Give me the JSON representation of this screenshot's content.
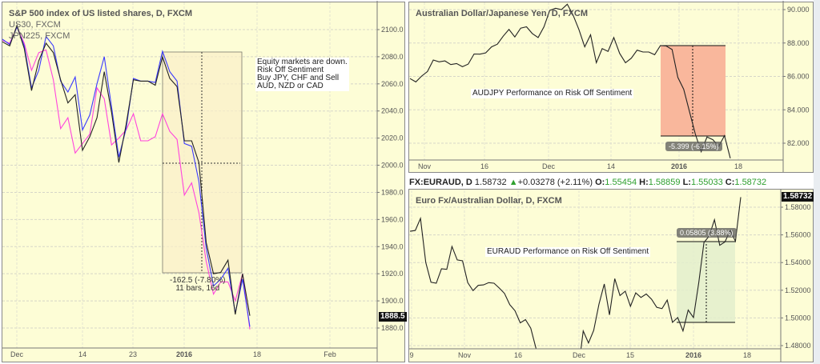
{
  "left": {
    "title": "S&P 500 index of US listed shares, D, FXCM",
    "overlays": [
      "US30, FXCM",
      "JPN225, FXCM"
    ],
    "note": [
      "Equity markets are down.",
      "Risk Off Sentiment",
      "Buy JPY, CHF and Sell",
      "AUD, NZD or CAD"
    ],
    "measure": [
      "-162.5 (-7.80%)",
      "11 bars, 16d"
    ],
    "last_price": "1888.5",
    "xticks": [
      "Dec",
      "14",
      "23",
      "2016",
      "18",
      "Feb"
    ]
  },
  "audjpy": {
    "title": "Australian Dollar/Japanese Yen, D, FXCM",
    "note": "AUDJPY Performance on Risk Off Sentiment",
    "measure": "-5.399 (-6.15%)",
    "xticks": [
      "Nov",
      "16",
      "Dec",
      "14",
      "2016",
      "18"
    ]
  },
  "info": {
    "symbol": "FX:EURAUD, D",
    "price": "1.58732",
    "arrow": "▲",
    "change": "+0.03278 (+2.11%)",
    "o_label": "O:",
    "o": "1.55454",
    "h_label": "H:",
    "h": "1.58859",
    "l_label": "L:",
    "l": "1.55033",
    "c_label": "C:",
    "c": "1.58732"
  },
  "euraud": {
    "title": "Euro Fx/Australian Dollar, D, FXCM",
    "note": "EURAUD Performance on Risk Off Sentiment",
    "measure": "0.05805 (3.88%)",
    "last_price": "1.58732",
    "xticks": [
      "9",
      "Nov",
      "16",
      "Dec",
      "15",
      "2016",
      "18"
    ]
  },
  "colors": {
    "background": "#fdfdd6",
    "spx": "#222222",
    "us30": "#3a3aff",
    "jpn225": "#ff44dd",
    "loss_box": "#f9b79c",
    "gain_box": "#e6f0d2"
  },
  "chart_data": [
    {
      "type": "line",
      "title": "S&P 500 index of US listed shares, D, FXCM",
      "ylim": [
        1865,
        2120
      ],
      "yticks": [
        1880,
        1900,
        1920,
        1940,
        1960,
        1980,
        2000,
        2020,
        2040,
        2060,
        2080,
        2100
      ],
      "grid": true,
      "series": [
        {
          "name": "S&P 500 index of US listed shares, D, FXCM",
          "values": [
            2091,
            2088,
            2103,
            2086,
            2055,
            2077,
            2090,
            2083,
            2063,
            2046,
            2052,
            2011,
            2021,
            2035,
            2069,
            2039,
            2002,
            2030,
            2063,
            2062,
            2062,
            2059,
            2080,
            2064,
            2058,
            2018,
            2018,
            2002,
            1943,
            1920,
            1921,
            1930,
            1890,
            1920,
            1889
          ]
        },
        {
          "name": "US30, FXCM",
          "values": [
            2093,
            2089,
            2102,
            2088,
            2057,
            2070,
            2095,
            2088,
            2062,
            2054,
            2065,
            2026,
            2037,
            2060,
            2080,
            2043,
            2006,
            2027,
            2064,
            2062,
            2062,
            2061,
            2084,
            2069,
            2062,
            2016,
            2014,
            1988,
            1939,
            1911,
            1916,
            1924,
            1891,
            1916,
            1881
          ]
        },
        {
          "name": "JPN225, FXCM",
          "values": [
            2092,
            2090,
            2102,
            2090,
            2070,
            2083,
            2085,
            2063,
            2027,
            2035,
            2009,
            2016,
            2023,
            2057,
            2049,
            2015,
            2020,
            2026,
            2038,
            2018,
            2018,
            2021,
            2038,
            2025,
            2019,
            1978,
            1987,
            1965,
            1929,
            1905,
            1914,
            1914,
            1900,
            1920,
            1879
          ]
        }
      ]
    },
    {
      "type": "line",
      "title": "Australian Dollar/Japanese Yen, D, FXCM",
      "ylim": [
        81,
        90.5
      ],
      "yticks": [
        82,
        84,
        86,
        88,
        90
      ],
      "grid": true,
      "series": [
        {
          "values": [
            85.87,
            85.67,
            86.02,
            86.29,
            86.98,
            86.87,
            86.93,
            86.71,
            86.77,
            86.58,
            86.74,
            87.34,
            87.33,
            87.41,
            87.77,
            87.93,
            88.41,
            88.81,
            88.36,
            88.89,
            88.97,
            88.57,
            88.33,
            88.97,
            89.95,
            90.08,
            90.0,
            90.32,
            89.68,
            88.81,
            87.77,
            88.49,
            86.82,
            87.66,
            87.5,
            88.33,
            87.38,
            86.82,
            87.09,
            87.57,
            87.46,
            87.46,
            87.3,
            87.85,
            87.82,
            87.61,
            85.94,
            85.23,
            83.88,
            82.53,
            81.49,
            82.37,
            82.21,
            81.81,
            82.45,
            81.1
          ]
        }
      ]
    },
    {
      "type": "line",
      "title": "Euro Fx/Australian Dollar, D, FXCM",
      "ylim": [
        1.477,
        1.592
      ],
      "yticks": [
        1.48,
        1.5,
        1.52,
        1.54,
        1.56,
        1.58
      ],
      "grid": true,
      "series": [
        {
          "values": [
            1.5626,
            1.5632,
            1.5719,
            1.54,
            1.5258,
            1.5251,
            1.5355,
            1.5351,
            1.5516,
            1.5419,
            1.5413,
            1.5255,
            1.5197,
            1.5235,
            1.5239,
            1.5255,
            1.5251,
            1.5216,
            1.5177,
            1.5096,
            1.5052,
            1.4964,
            1.4988,
            1.4926,
            1.4781,
            null,
            null,
            null,
            null,
            null,
            null,
            null,
            null,
            1.4906,
            1.4819,
            1.491,
            1.51,
            1.5245,
            1.5022,
            1.5284,
            1.5162,
            1.5193,
            1.5084,
            1.5181,
            1.5148,
            1.5173,
            1.5135,
            1.5077,
            1.5067,
            1.5129,
            1.4968,
            1.5003,
            1.4906,
            1.5057,
            1.5003,
            1.5255,
            1.5545,
            1.5593,
            1.5709,
            1.5525,
            1.5549,
            1.5632,
            1.5554,
            1.5873
          ]
        }
      ]
    }
  ]
}
